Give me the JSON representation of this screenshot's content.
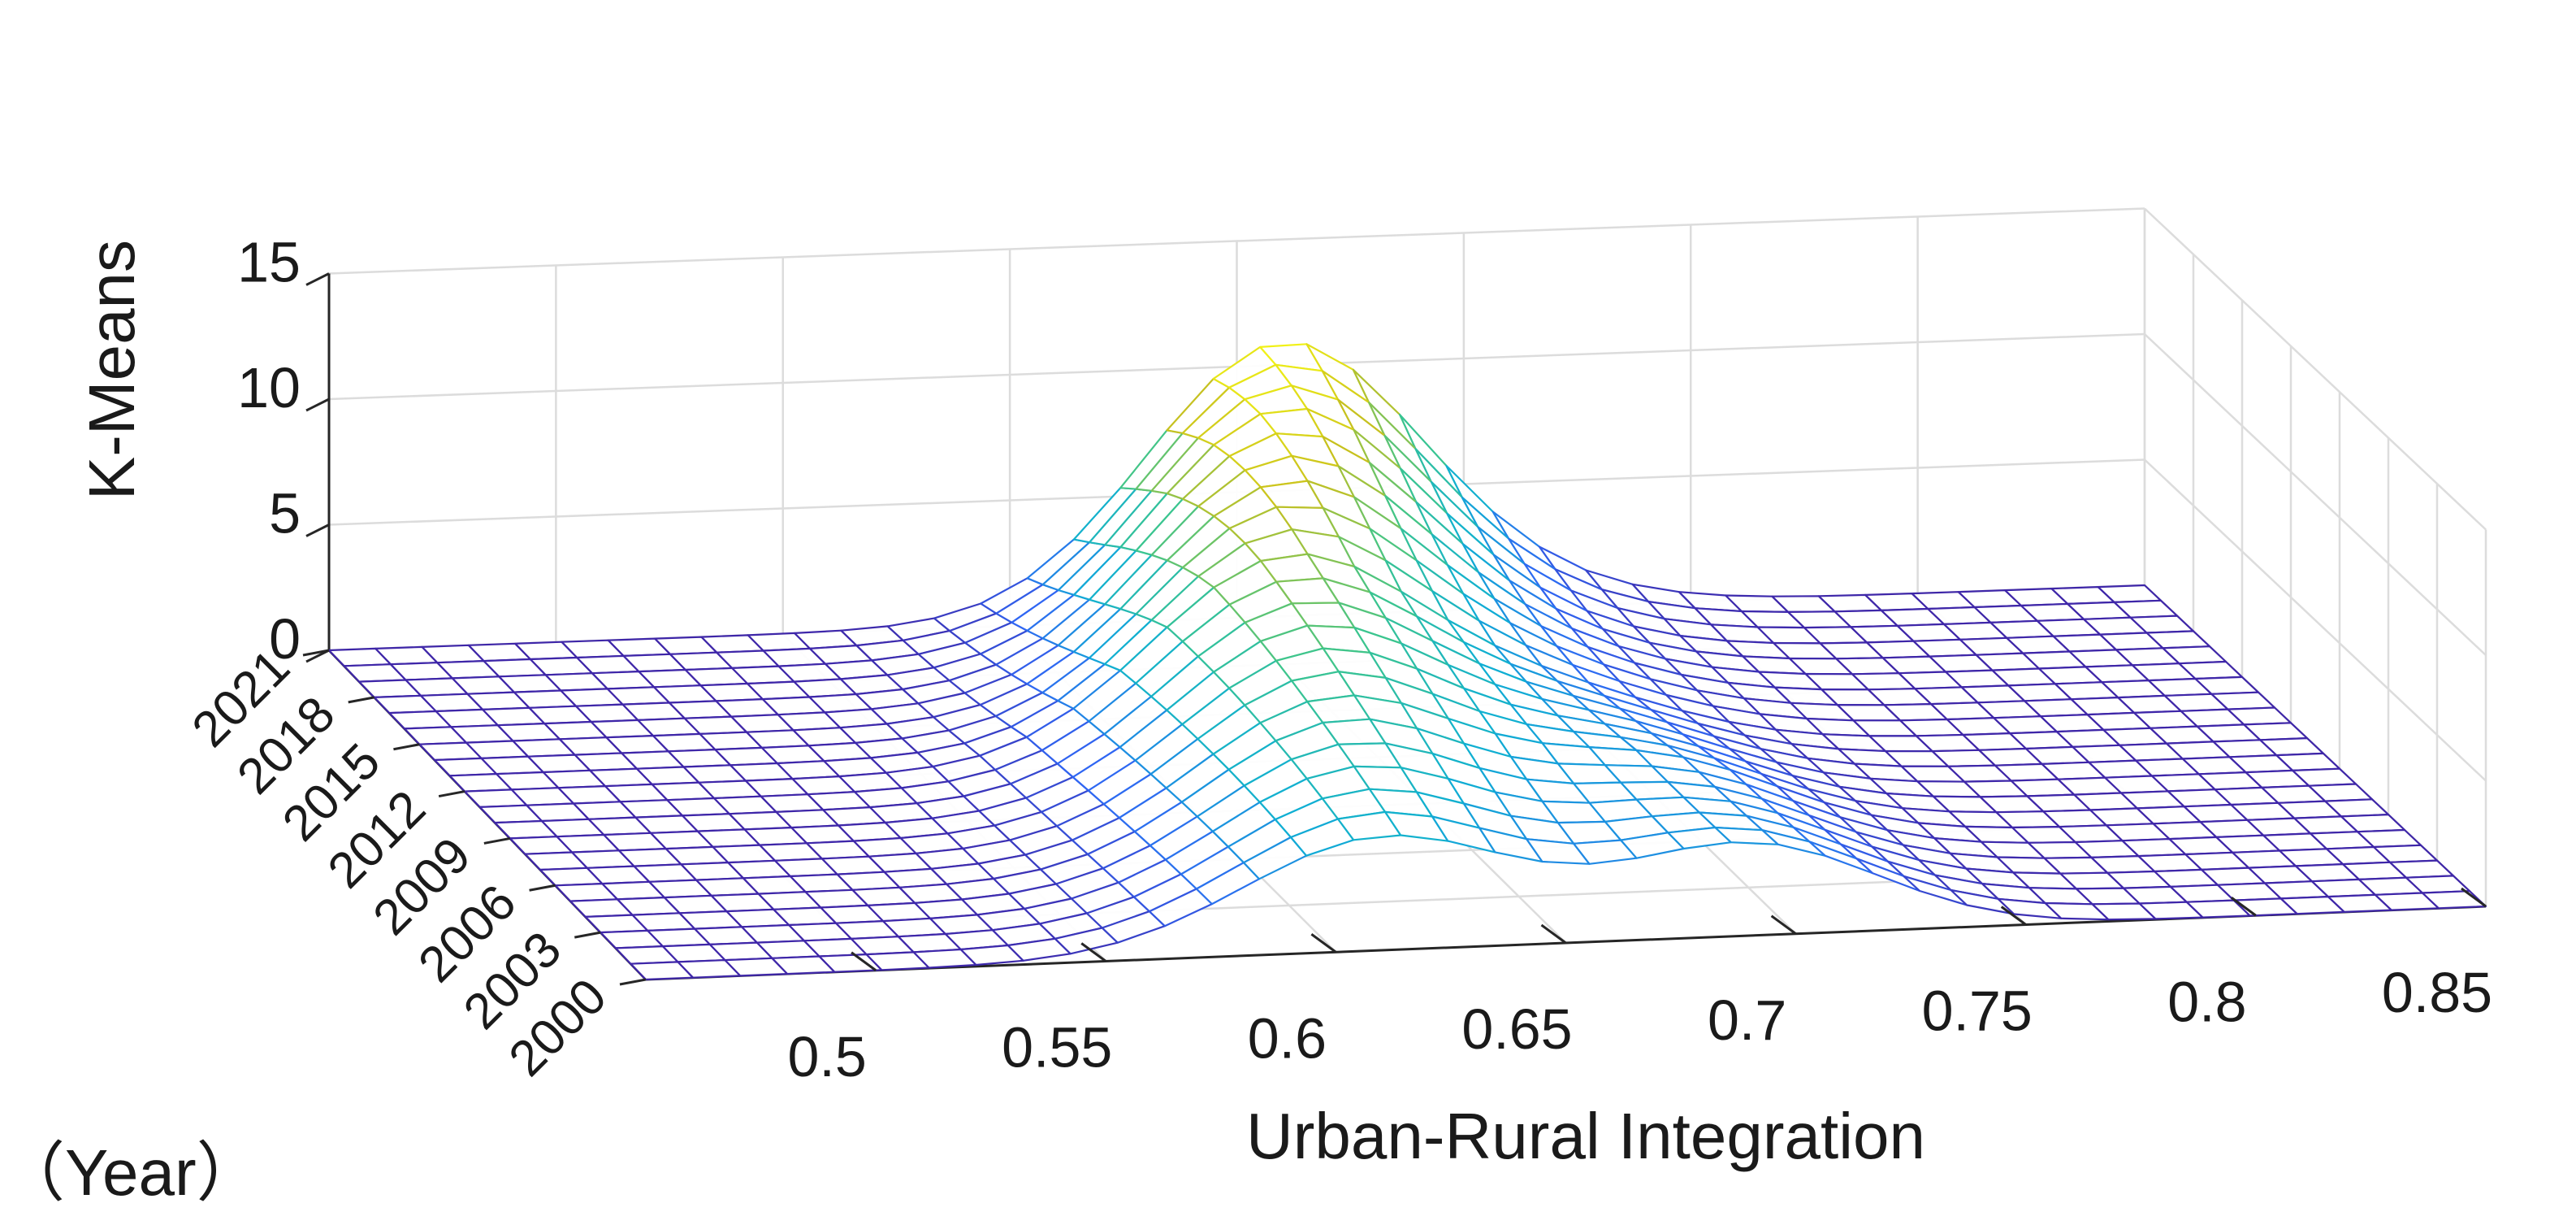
{
  "chart_data": {
    "type": "surface",
    "xlabel": "Urban-Rural Integration",
    "ylabel": "（Year）",
    "zlabel": "K-Means",
    "x_range": [
      0.45,
      0.85
    ],
    "y_range": [
      2000,
      2021
    ],
    "z_range": [
      0,
      15
    ],
    "x_ticks": [
      "0.5",
      "0.55",
      "0.6",
      "0.65",
      "0.7",
      "0.75",
      "0.8",
      "0.85"
    ],
    "y_ticks": [
      "2000",
      "2003",
      "2006",
      "2009",
      "2012",
      "2015",
      "2018",
      "2021"
    ],
    "z_ticks": [
      "0",
      "5",
      "10",
      "15"
    ],
    "grid": true,
    "colormap": [
      "#3e26a8",
      "#2f66f3",
      "#0fafd3",
      "#3bc58e",
      "#c9c11d",
      "#f9fb15"
    ],
    "mesh": {
      "x_steps": 40,
      "year_steps": 22
    },
    "density_profile": [
      {
        "year": 2000,
        "peaks": [
          {
            "center": 0.61,
            "width": 0.03,
            "height": 4.5
          },
          {
            "center": 0.69,
            "width": 0.028,
            "height": 3.6
          }
        ]
      },
      {
        "year": 2006,
        "peaks": [
          {
            "center": 0.62,
            "width": 0.03,
            "height": 6.2
          },
          {
            "center": 0.69,
            "width": 0.028,
            "height": 3.2
          }
        ]
      },
      {
        "year": 2012,
        "peaks": [
          {
            "center": 0.63,
            "width": 0.03,
            "height": 8.0
          },
          {
            "center": 0.69,
            "width": 0.028,
            "height": 2.0
          }
        ]
      },
      {
        "year": 2018,
        "peaks": [
          {
            "center": 0.65,
            "width": 0.03,
            "height": 10.0
          },
          {
            "center": 0.7,
            "width": 0.028,
            "height": 1.0
          }
        ]
      },
      {
        "year": 2021,
        "peaks": [
          {
            "center": 0.66,
            "width": 0.03,
            "height": 10.8
          },
          {
            "center": 0.71,
            "width": 0.028,
            "height": 0.6
          }
        ]
      }
    ]
  }
}
